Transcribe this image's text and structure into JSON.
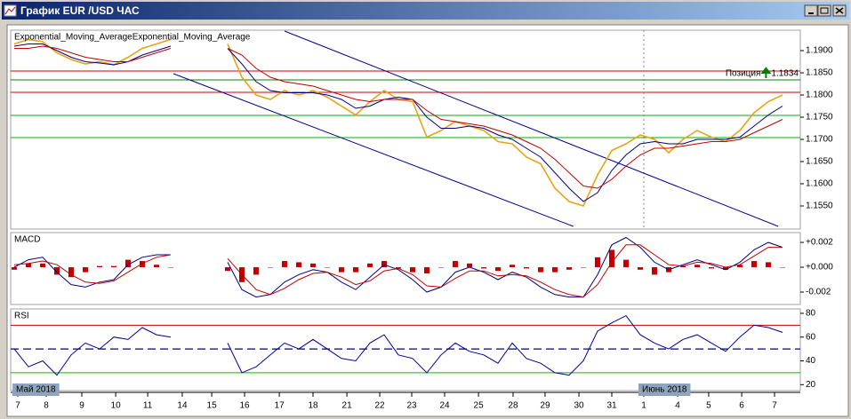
{
  "window": {
    "title": "График EUR /USD ЧАС"
  },
  "xaxis": {
    "xlim": [
      -0.25,
      55.25
    ],
    "xticks": [
      {
        "value": 0.25,
        "label": "7"
      },
      {
        "value": 2.25,
        "label": "8"
      },
      {
        "value": 4.75,
        "label": "9"
      },
      {
        "value": 7.13,
        "label": "10"
      },
      {
        "value": 9.38,
        "label": "11"
      },
      {
        "value": 11.81,
        "label": "14"
      },
      {
        "value": 13.88,
        "label": "15"
      },
      {
        "value": 16.19,
        "label": "16"
      },
      {
        "value": 18.63,
        "label": "17"
      },
      {
        "value": 21,
        "label": "18"
      },
      {
        "value": 23.38,
        "label": "21"
      },
      {
        "value": 25.69,
        "label": "22"
      },
      {
        "value": 27.94,
        "label": "23"
      },
      {
        "value": 30.25,
        "label": "24"
      },
      {
        "value": 32.63,
        "label": "25"
      },
      {
        "value": 35.06,
        "label": "28"
      },
      {
        "value": 37.31,
        "label": "29"
      },
      {
        "value": 39.69,
        "label": "30"
      },
      {
        "value": 42,
        "label": "31"
      },
      {
        "value": 44.25,
        "label": "1"
      },
      {
        "value": 46.63,
        "label": "4"
      },
      {
        "value": 48.81,
        "label": "5"
      },
      {
        "value": 51.13,
        "label": "6"
      },
      {
        "value": 53.44,
        "label": "7"
      }
    ],
    "months": [
      {
        "value": 0,
        "label": "Май 2018"
      },
      {
        "value": 44.25,
        "label": "Июнь 2018"
      }
    ]
  },
  "chart_data": [
    {
      "type": "line",
      "ylim": [
        1.1498,
        1.1946
      ],
      "yticks": [
        {
          "value": 1.155,
          "label": "1.1550"
        },
        {
          "value": 1.16,
          "label": "1.1600"
        },
        {
          "value": 1.165,
          "label": "1.1650"
        },
        {
          "value": 1.17,
          "label": "1.1700"
        },
        {
          "value": 1.175,
          "label": "1.1750"
        },
        {
          "value": 1.18,
          "label": "1.1800"
        },
        {
          "value": 1.185,
          "label": "1.1850"
        },
        {
          "value": 1.19,
          "label": "1.1900"
        }
      ],
      "levels": [
        {
          "value": 1.1854,
          "color": "#d00000"
        },
        {
          "value": 1.1806,
          "color": "#d00000"
        },
        {
          "value": 1.1754,
          "color": "#00b000"
        },
        {
          "value": 1.1704,
          "color": "#00b000"
        }
      ],
      "position": {
        "label": "Позиция",
        "value": 1.1834,
        "color": "#008000"
      },
      "channels": [
        [
          {
            "x": 19,
            "y": 1.1944
          },
          {
            "x": 53.7,
            "y": 1.1504
          }
        ],
        [
          {
            "x": 11.19,
            "y": 1.1848
          },
          {
            "x": 39.3,
            "y": 1.1504
          }
        ]
      ],
      "channel_color": "#000090",
      "series": [
        {
          "color": "#e8a317",
          "values": [
            1.1915,
            1.1925,
            1.192,
            1.1895,
            1.188,
            1.187,
            1.1875,
            1.1868,
            1.1885,
            1.1905,
            1.1915,
            1.1925,
            null,
            null,
            null,
            1.1915,
            1.184,
            1.18,
            1.179,
            1.181,
            1.18,
            1.181,
            1.1795,
            1.1775,
            1.1755,
            1.1785,
            1.181,
            1.179,
            1.1785,
            1.1705,
            1.172,
            1.174,
            1.173,
            1.172,
            1.1695,
            1.169,
            1.166,
            1.1645,
            1.159,
            1.156,
            1.155,
            1.162,
            1.1675,
            1.169,
            1.171,
            1.17,
            1.167,
            1.17,
            1.172,
            1.1705,
            1.1695,
            1.172,
            1.176,
            1.1785,
            1.18
          ]
        },
        {
          "name": "Exponential_Moving_Average",
          "color": "#000080",
          "values": [
            1.191,
            1.1915,
            1.1915,
            1.19,
            1.1885,
            1.1875,
            1.1872,
            1.1868,
            1.1875,
            1.189,
            1.19,
            1.191,
            null,
            null,
            null,
            1.1905,
            1.187,
            1.183,
            1.181,
            1.1805,
            1.1805,
            1.1805,
            1.18,
            1.179,
            1.177,
            1.1775,
            1.179,
            1.1795,
            1.179,
            1.175,
            1.1725,
            1.1725,
            1.173,
            1.1725,
            1.171,
            1.17,
            1.168,
            1.166,
            1.1625,
            1.159,
            1.156,
            1.158,
            1.163,
            1.1665,
            1.169,
            1.1695,
            1.169,
            1.169,
            1.17,
            1.17,
            1.17,
            1.1705,
            1.173,
            1.1755,
            1.1775
          ]
        },
        {
          "name": "Exponential_Moving_Average",
          "color": "#c00000",
          "values": [
            1.1905,
            1.1905,
            1.191,
            1.1905,
            1.1895,
            1.1885,
            1.188,
            1.1875,
            1.1875,
            1.1885,
            1.1895,
            1.1905,
            null,
            null,
            null,
            1.1905,
            1.189,
            1.186,
            1.184,
            1.183,
            1.1825,
            1.182,
            1.181,
            1.18,
            1.179,
            1.1785,
            1.179,
            1.179,
            1.179,
            1.1765,
            1.1745,
            1.174,
            1.1735,
            1.173,
            1.172,
            1.171,
            1.1695,
            1.168,
            1.1655,
            1.1625,
            1.1595,
            1.159,
            1.161,
            1.164,
            1.1665,
            1.168,
            1.168,
            1.1685,
            1.169,
            1.1695,
            1.1695,
            1.17,
            1.1715,
            1.173,
            1.1745
          ]
        }
      ]
    },
    {
      "type": "line",
      "title": "MACD",
      "ylim": [
        -0.003,
        0.00279
      ],
      "yticks": [
        {
          "value": -0.002,
          "label": "-0.002"
        },
        {
          "value": 0,
          "label": "+0.000"
        },
        {
          "value": 0.002,
          "label": "+0.002"
        }
      ],
      "series": [
        {
          "style": "bar",
          "color": "#c00000",
          "values": [
            -0.0002,
            0.0003,
            0.0003,
            -0.0006,
            -0.0008,
            -0.0004,
            0.0001,
            0.0001,
            0.0006,
            0.0005,
            0.0002,
            0,
            null,
            null,
            null,
            -0.0003,
            -0.0012,
            -0.0006,
            0,
            0.0005,
            0.0004,
            0.0003,
            0,
            -0.0004,
            -0.0004,
            0.0003,
            0.0005,
            -0.0001,
            -0.0004,
            -0.0005,
            0,
            0.0005,
            0.0003,
            -0.0001,
            -0.0003,
            0.0002,
            -0.0001,
            -0.0004,
            -0.0004,
            -0.0002,
            0,
            0.0008,
            0.0014,
            0.0006,
            -0.0002,
            -0.0006,
            -0.0004,
            0.0001,
            0.0002,
            -0.0001,
            -0.0002,
            0.0002,
            0.0005,
            0.0004,
            0
          ]
        },
        {
          "color": "#000080",
          "values": [
            0,
            0.0006,
            0.0008,
            -0.0004,
            -0.0014,
            -0.0016,
            -0.0012,
            -0.001,
            0.0002,
            0.0008,
            0.001,
            0.001,
            null,
            null,
            null,
            0.0004,
            -0.0018,
            -0.0024,
            -0.0022,
            -0.0012,
            -0.0006,
            -0.0002,
            -0.0004,
            -0.0012,
            -0.0018,
            -0.0008,
            0.0002,
            -0.0002,
            -0.001,
            -0.002,
            -0.0016,
            -0.0004,
            0,
            -0.0004,
            -0.001,
            -0.0004,
            -0.0008,
            -0.0016,
            -0.0022,
            -0.0024,
            -0.0024,
            -0.0006,
            0.0018,
            0.0024,
            0.0016,
            0.0004,
            -0.0002,
            0.0002,
            0.0006,
            0.0002,
            -0.0002,
            0.0004,
            0.0014,
            0.002,
            0.0016
          ]
        },
        {
          "color": "#c00000",
          "values": [
            0.0002,
            0.0003,
            0.0005,
            0.0002,
            -0.0006,
            -0.0012,
            -0.0013,
            -0.0011,
            -0.0004,
            0.0003,
            0.0008,
            0.001,
            null,
            null,
            null,
            0.0007,
            -0.0006,
            -0.0018,
            -0.0022,
            -0.0017,
            -0.001,
            -0.0005,
            -0.0004,
            -0.0008,
            -0.0014,
            -0.0011,
            -0.0003,
            -0.0001,
            -0.0006,
            -0.0015,
            -0.0016,
            -0.0009,
            -0.0003,
            -0.0003,
            -0.0007,
            -0.0006,
            -0.0007,
            -0.0012,
            -0.0018,
            -0.0022,
            -0.0024,
            -0.0014,
            0.0004,
            0.0018,
            0.0018,
            0.001,
            0.0002,
            0.0001,
            0.0004,
            0.0003,
            0,
            0.0002,
            0.0009,
            0.0016,
            0.0016
          ]
        }
      ]
    },
    {
      "type": "line",
      "title": "RSI",
      "ylim": [
        15,
        83.7
      ],
      "yticks": [
        20,
        40,
        60,
        80
      ],
      "levels": [
        {
          "value": 70,
          "color": "#c00000"
        },
        {
          "value": 50,
          "color": "#000080",
          "dashed": true
        },
        {
          "value": 30,
          "color": "#00c000"
        }
      ],
      "series": [
        {
          "color": "#000090",
          "values": [
            50,
            35,
            40,
            28,
            45,
            55,
            50,
            60,
            58,
            68,
            62,
            60,
            null,
            null,
            null,
            55,
            30,
            35,
            45,
            55,
            50,
            58,
            50,
            42,
            40,
            55,
            62,
            45,
            42,
            30,
            45,
            55,
            48,
            45,
            38,
            55,
            42,
            38,
            30,
            28,
            40,
            65,
            72,
            78,
            62,
            55,
            50,
            58,
            62,
            55,
            48,
            60,
            70,
            68,
            64
          ]
        }
      ]
    }
  ]
}
